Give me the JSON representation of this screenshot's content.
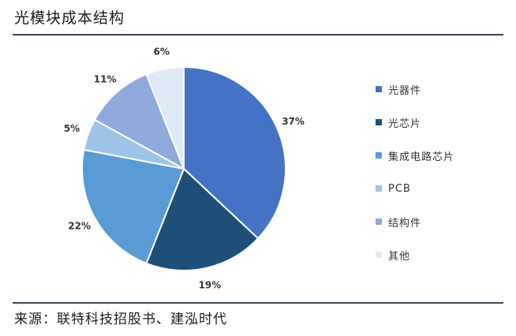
{
  "title": "光模块成本结构",
  "source": "来源：联特科技招股书、建泓时代",
  "chart_data": {
    "type": "pie",
    "title": "光模块成本结构",
    "legend_position": "right",
    "slices": [
      {
        "name": "光器件",
        "value": 37,
        "label": "37%",
        "color": "#4472c4"
      },
      {
        "name": "光芯片",
        "value": 19,
        "label": "19%",
        "color": "#1f4e79"
      },
      {
        "name": "集成电路芯片",
        "value": 22,
        "label": "22%",
        "color": "#5b9bd5"
      },
      {
        "name": "PCB",
        "value": 5,
        "label": "5%",
        "color": "#9dc3e6"
      },
      {
        "name": "结构件",
        "value": 11,
        "label": "11%",
        "color": "#8faadc"
      },
      {
        "name": "其他",
        "value": 6,
        "label": "6%",
        "color": "#deebf7"
      }
    ]
  }
}
